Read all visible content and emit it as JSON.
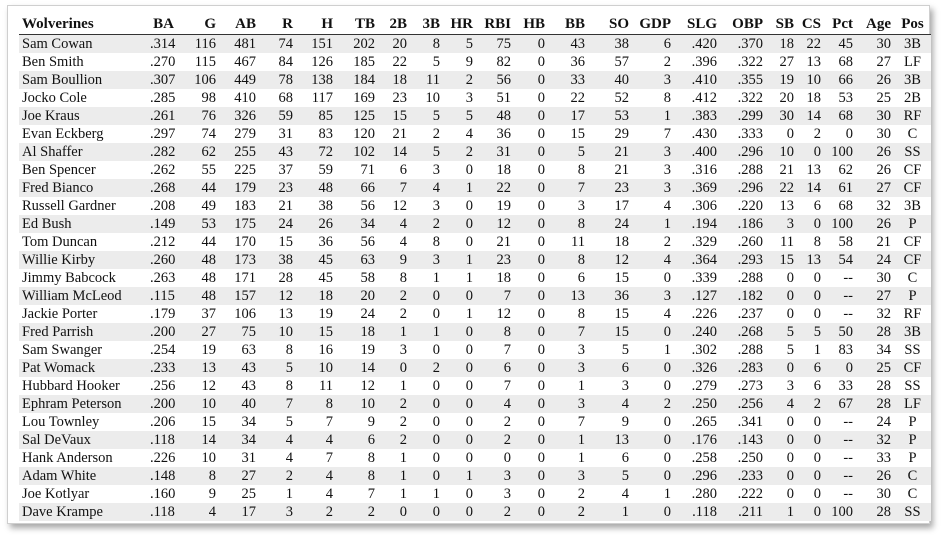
{
  "table": {
    "columns": [
      {
        "key": "name",
        "label": "Wolverines",
        "align": "l"
      },
      {
        "key": "ba",
        "label": "BA",
        "align": "r"
      },
      {
        "key": "g",
        "label": "G",
        "align": "r"
      },
      {
        "key": "ab",
        "label": "AB",
        "align": "r"
      },
      {
        "key": "r",
        "label": "R",
        "align": "r"
      },
      {
        "key": "h",
        "label": "H",
        "align": "r"
      },
      {
        "key": "tb",
        "label": "TB",
        "align": "r"
      },
      {
        "key": "2b",
        "label": "2B",
        "align": "r"
      },
      {
        "key": "3b",
        "label": "3B",
        "align": "r"
      },
      {
        "key": "hr",
        "label": "HR",
        "align": "r"
      },
      {
        "key": "rbi",
        "label": "RBI",
        "align": "r"
      },
      {
        "key": "hb",
        "label": "HB",
        "align": "r"
      },
      {
        "key": "bb",
        "label": "BB",
        "align": "r"
      },
      {
        "key": "so",
        "label": "SO",
        "align": "r"
      },
      {
        "key": "gdp",
        "label": "GDP",
        "align": "r"
      },
      {
        "key": "slg",
        "label": "SLG",
        "align": "r"
      },
      {
        "key": "obp",
        "label": "OBP",
        "align": "r"
      },
      {
        "key": "sb",
        "label": "SB",
        "align": "r"
      },
      {
        "key": "cs",
        "label": "CS",
        "align": "r"
      },
      {
        "key": "pct",
        "label": "Pct",
        "align": "r"
      },
      {
        "key": "age",
        "label": "Age",
        "align": "r"
      },
      {
        "key": "pos",
        "label": "Pos",
        "align": "c"
      }
    ],
    "rows": [
      [
        "Sam Cowan",
        ".314",
        "116",
        "481",
        "74",
        "151",
        "202",
        "20",
        "8",
        "5",
        "75",
        "0",
        "43",
        "38",
        "6",
        ".420",
        ".370",
        "18",
        "22",
        "45",
        "30",
        "3B"
      ],
      [
        "Ben Smith",
        ".270",
        "115",
        "467",
        "84",
        "126",
        "185",
        "22",
        "5",
        "9",
        "82",
        "0",
        "36",
        "57",
        "2",
        ".396",
        ".322",
        "27",
        "13",
        "68",
        "27",
        "LF"
      ],
      [
        "Sam Boullion",
        ".307",
        "106",
        "449",
        "78",
        "138",
        "184",
        "18",
        "11",
        "2",
        "56",
        "0",
        "33",
        "40",
        "3",
        ".410",
        ".355",
        "19",
        "10",
        "66",
        "26",
        "3B"
      ],
      [
        "Jocko Cole",
        ".285",
        "98",
        "410",
        "68",
        "117",
        "169",
        "23",
        "10",
        "3",
        "51",
        "0",
        "22",
        "52",
        "8",
        ".412",
        ".322",
        "20",
        "18",
        "53",
        "25",
        "2B"
      ],
      [
        "Joe Kraus",
        ".261",
        "76",
        "326",
        "59",
        "85",
        "125",
        "15",
        "5",
        "5",
        "48",
        "0",
        "17",
        "53",
        "1",
        ".383",
        ".299",
        "30",
        "14",
        "68",
        "30",
        "RF"
      ],
      [
        "Evan Eckberg",
        ".297",
        "74",
        "279",
        "31",
        "83",
        "120",
        "21",
        "2",
        "4",
        "36",
        "0",
        "15",
        "29",
        "7",
        ".430",
        ".333",
        "0",
        "2",
        "0",
        "30",
        "C"
      ],
      [
        "Al Shaffer",
        ".282",
        "62",
        "255",
        "43",
        "72",
        "102",
        "14",
        "5",
        "2",
        "31",
        "0",
        "5",
        "21",
        "3",
        ".400",
        ".296",
        "10",
        "0",
        "100",
        "26",
        "SS"
      ],
      [
        "Ben Spencer",
        ".262",
        "55",
        "225",
        "37",
        "59",
        "71",
        "6",
        "3",
        "0",
        "18",
        "0",
        "8",
        "21",
        "3",
        ".316",
        ".288",
        "21",
        "13",
        "62",
        "26",
        "CF"
      ],
      [
        "Fred Bianco",
        ".268",
        "44",
        "179",
        "23",
        "48",
        "66",
        "7",
        "4",
        "1",
        "22",
        "0",
        "7",
        "23",
        "3",
        ".369",
        ".296",
        "22",
        "14",
        "61",
        "27",
        "CF"
      ],
      [
        "Russell Gardner",
        ".208",
        "49",
        "183",
        "21",
        "38",
        "56",
        "12",
        "3",
        "0",
        "19",
        "0",
        "3",
        "17",
        "4",
        ".306",
        ".220",
        "13",
        "6",
        "68",
        "32",
        "3B"
      ],
      [
        "Ed Bush",
        ".149",
        "53",
        "175",
        "24",
        "26",
        "34",
        "4",
        "2",
        "0",
        "12",
        "0",
        "8",
        "24",
        "1",
        ".194",
        ".186",
        "3",
        "0",
        "100",
        "26",
        "P"
      ],
      [
        "Tom Duncan",
        ".212",
        "44",
        "170",
        "15",
        "36",
        "56",
        "4",
        "8",
        "0",
        "21",
        "0",
        "11",
        "18",
        "2",
        ".329",
        ".260",
        "11",
        "8",
        "58",
        "21",
        "CF"
      ],
      [
        "Willie Kirby",
        ".260",
        "48",
        "173",
        "38",
        "45",
        "63",
        "9",
        "3",
        "1",
        "23",
        "0",
        "8",
        "12",
        "4",
        ".364",
        ".293",
        "15",
        "13",
        "54",
        "24",
        "CF"
      ],
      [
        "Jimmy Babcock",
        ".263",
        "48",
        "171",
        "28",
        "45",
        "58",
        "8",
        "1",
        "1",
        "18",
        "0",
        "6",
        "15",
        "0",
        ".339",
        ".288",
        "0",
        "0",
        "--",
        "30",
        "C"
      ],
      [
        "William McLeod",
        ".115",
        "48",
        "157",
        "12",
        "18",
        "20",
        "2",
        "0",
        "0",
        "7",
        "0",
        "13",
        "36",
        "3",
        ".127",
        ".182",
        "0",
        "0",
        "--",
        "27",
        "P"
      ],
      [
        "Jackie Porter",
        ".179",
        "37",
        "106",
        "13",
        "19",
        "24",
        "2",
        "0",
        "1",
        "12",
        "0",
        "8",
        "15",
        "4",
        ".226",
        ".237",
        "0",
        "0",
        "--",
        "32",
        "RF"
      ],
      [
        "Fred Parrish",
        ".200",
        "27",
        "75",
        "10",
        "15",
        "18",
        "1",
        "1",
        "0",
        "8",
        "0",
        "7",
        "15",
        "0",
        ".240",
        ".268",
        "5",
        "5",
        "50",
        "28",
        "3B"
      ],
      [
        "Sam Swanger",
        ".254",
        "19",
        "63",
        "8",
        "16",
        "19",
        "3",
        "0",
        "0",
        "7",
        "0",
        "3",
        "5",
        "1",
        ".302",
        ".288",
        "5",
        "1",
        "83",
        "34",
        "SS"
      ],
      [
        "Pat Womack",
        ".233",
        "13",
        "43",
        "5",
        "10",
        "14",
        "0",
        "2",
        "0",
        "6",
        "0",
        "3",
        "6",
        "0",
        ".326",
        ".283",
        "0",
        "6",
        "0",
        "25",
        "CF"
      ],
      [
        "Hubbard Hooker",
        ".256",
        "12",
        "43",
        "8",
        "11",
        "12",
        "1",
        "0",
        "0",
        "7",
        "0",
        "1",
        "3",
        "0",
        ".279",
        ".273",
        "3",
        "6",
        "33",
        "28",
        "SS"
      ],
      [
        "Ephram Peterson",
        ".200",
        "10",
        "40",
        "7",
        "8",
        "10",
        "2",
        "0",
        "0",
        "4",
        "0",
        "3",
        "4",
        "2",
        ".250",
        ".256",
        "4",
        "2",
        "67",
        "28",
        "LF"
      ],
      [
        "Lou Townley",
        ".206",
        "15",
        "34",
        "5",
        "7",
        "9",
        "2",
        "0",
        "0",
        "2",
        "0",
        "7",
        "9",
        "0",
        ".265",
        ".341",
        "0",
        "0",
        "--",
        "24",
        "P"
      ],
      [
        "Sal DeVaux",
        ".118",
        "14",
        "34",
        "4",
        "4",
        "6",
        "2",
        "0",
        "0",
        "2",
        "0",
        "1",
        "13",
        "0",
        ".176",
        ".143",
        "0",
        "0",
        "--",
        "32",
        "P"
      ],
      [
        "Hank Anderson",
        ".226",
        "10",
        "31",
        "4",
        "7",
        "8",
        "1",
        "0",
        "0",
        "0",
        "0",
        "1",
        "6",
        "0",
        ".258",
        ".250",
        "0",
        "0",
        "--",
        "33",
        "P"
      ],
      [
        "Adam White",
        ".148",
        "8",
        "27",
        "2",
        "4",
        "8",
        "1",
        "0",
        "1",
        "3",
        "0",
        "3",
        "5",
        "0",
        ".296",
        ".233",
        "0",
        "0",
        "--",
        "26",
        "C"
      ],
      [
        "Joe Kotlyar",
        ".160",
        "9",
        "25",
        "1",
        "4",
        "7",
        "1",
        "1",
        "0",
        "3",
        "0",
        "2",
        "4",
        "1",
        ".280",
        ".222",
        "0",
        "0",
        "--",
        "30",
        "C"
      ],
      [
        "Dave Krampe",
        ".118",
        "4",
        "17",
        "3",
        "2",
        "2",
        "0",
        "0",
        "0",
        "2",
        "0",
        "2",
        "1",
        "0",
        ".118",
        ".211",
        "1",
        "0",
        "100",
        "28",
        "SS"
      ]
    ]
  }
}
